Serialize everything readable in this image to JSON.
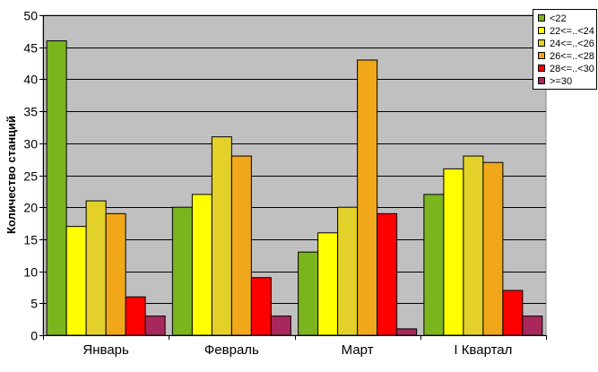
{
  "chart_data": {
    "type": "bar",
    "title": "",
    "xlabel": "",
    "ylabel": "Количество станций",
    "ylim": [
      0,
      50
    ],
    "yticks": [
      0,
      5,
      10,
      15,
      20,
      25,
      30,
      35,
      40,
      45,
      50
    ],
    "grid": true,
    "legend_position": "top-right",
    "plot_background": "#c0c0c0",
    "categories": [
      "Январь",
      "Февраль",
      "Март",
      "I Квартал"
    ],
    "series": [
      {
        "name": "<22",
        "color": "#7ab51d",
        "values": [
          46,
          20,
          13,
          22
        ]
      },
      {
        "name": "22<=..<24",
        "color": "#ffff00",
        "values": [
          17,
          22,
          16,
          26
        ]
      },
      {
        "name": "24<=..<26",
        "color": "#e3d12a",
        "values": [
          21,
          31,
          20,
          28
        ]
      },
      {
        "name": "26<=..<28",
        "color": "#f0a81a",
        "values": [
          19,
          28,
          43,
          27
        ]
      },
      {
        "name": "28<=..<30",
        "color": "#ff0000",
        "values": [
          6,
          9,
          19,
          7
        ]
      },
      {
        "name": ">=30",
        "color": "#a8275c",
        "values": [
          3,
          3,
          1,
          3
        ]
      }
    ]
  }
}
